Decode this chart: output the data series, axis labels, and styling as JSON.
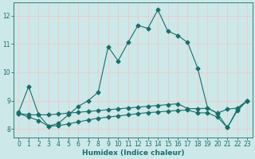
{
  "title": "",
  "xlabel": "Humidex (Indice chaleur)",
  "background_color": "#cce8e8",
  "grid_color": "#f0c8c8",
  "line_color": "#1a6e6a",
  "xlim": [
    -0.5,
    23.5
  ],
  "ylim": [
    7.7,
    12.45
  ],
  "xticks": [
    0,
    1,
    2,
    3,
    4,
    5,
    6,
    7,
    8,
    9,
    10,
    11,
    12,
    13,
    14,
    15,
    16,
    17,
    18,
    19,
    20,
    21,
    22,
    23
  ],
  "yticks": [
    8,
    9,
    10,
    11,
    12
  ],
  "line1_x": [
    0,
    1,
    2,
    3,
    4,
    5,
    6,
    7,
    8,
    9,
    10,
    11,
    12,
    13,
    14,
    15,
    16,
    17,
    18,
    19,
    20,
    21,
    22,
    23
  ],
  "line1_y": [
    8.6,
    9.5,
    8.5,
    8.1,
    8.2,
    8.5,
    8.8,
    9.0,
    9.3,
    10.9,
    10.4,
    11.05,
    11.65,
    11.55,
    12.2,
    11.45,
    11.3,
    11.05,
    10.15,
    8.75,
    8.55,
    8.05,
    8.7,
    9.0
  ],
  "line2_x": [
    0,
    1,
    2,
    3,
    4,
    5,
    6,
    7,
    8,
    9,
    10,
    11,
    12,
    13,
    14,
    15,
    16,
    17,
    18,
    19,
    20,
    21,
    22,
    23
  ],
  "line2_y": [
    8.55,
    8.5,
    8.5,
    8.5,
    8.53,
    8.56,
    8.59,
    8.62,
    8.65,
    8.68,
    8.71,
    8.74,
    8.77,
    8.8,
    8.83,
    8.86,
    8.89,
    8.72,
    8.72,
    8.73,
    8.56,
    8.7,
    8.74,
    9.0
  ],
  "line3_x": [
    0,
    1,
    2,
    3,
    4,
    5,
    6,
    7,
    8,
    9,
    10,
    11,
    12,
    13,
    14,
    15,
    16,
    17,
    18,
    19,
    20,
    21,
    22,
    23
  ],
  "line3_y": [
    8.55,
    8.42,
    8.3,
    8.1,
    8.12,
    8.18,
    8.25,
    8.32,
    8.38,
    8.42,
    8.46,
    8.5,
    8.54,
    8.58,
    8.6,
    8.63,
    8.65,
    8.67,
    8.57,
    8.57,
    8.42,
    8.05,
    8.65,
    9.0
  ]
}
